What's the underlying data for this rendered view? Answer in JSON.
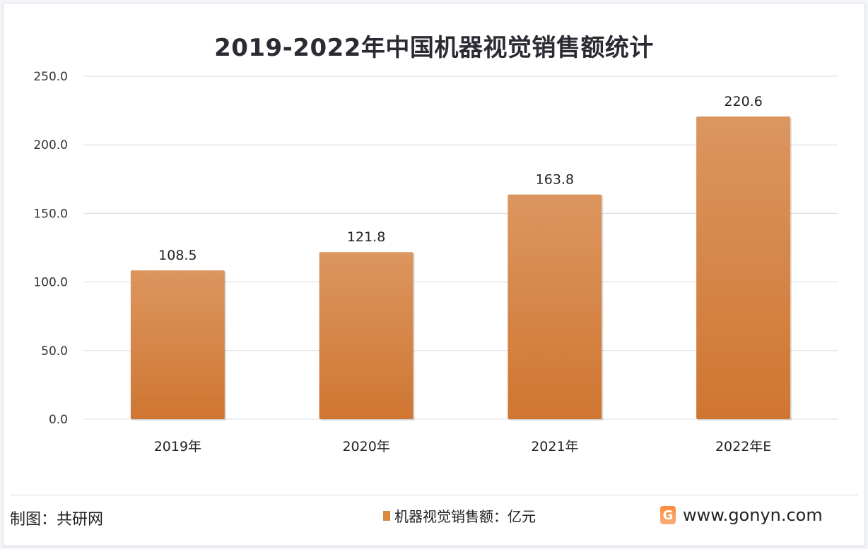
{
  "chart_data": {
    "type": "bar",
    "title": "2019-2022年中国机器视觉销售额统计",
    "categories": [
      "2019年",
      "2020年",
      "2021年",
      "2022年E"
    ],
    "series": [
      {
        "name": "机器视觉销售额：亿元",
        "values": [
          108.5,
          121.8,
          163.8,
          220.6
        ],
        "color": "#d98a3f"
      }
    ],
    "data_labels": [
      "108.5",
      "121.8",
      "163.8",
      "220.6"
    ],
    "yticks": [
      "0.0",
      "50.0",
      "100.0",
      "150.0",
      "200.0",
      "250.0"
    ],
    "ylim": [
      0,
      250
    ],
    "grid": true,
    "legend": "bottom"
  },
  "footer": {
    "credit": "制图：共研网",
    "logo_letter": "G",
    "site": "www.gonyn.com"
  }
}
